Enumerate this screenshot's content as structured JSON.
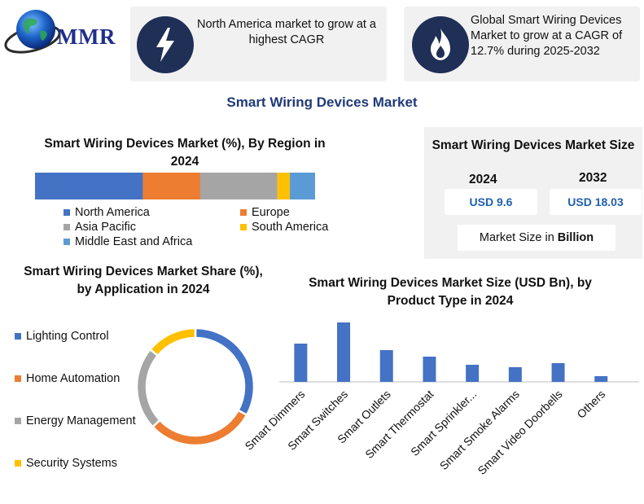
{
  "header": {
    "logo_text": "MMR",
    "card1_text": "North America market to grow at a highest CAGR",
    "card1_icon": "lightning-bolt-icon",
    "card2_text": "Global Smart Wiring Devices Market to grow at a CAGR of 12.7% during 2025-2032",
    "card2_icon": "flame-icon"
  },
  "main_title": "Smart Wiring Devices Market",
  "market_size": {
    "title": "Smart Wiring Devices Market Size",
    "year1": "2024",
    "value1": "USD 9.6",
    "year2": "2032",
    "value2": "USD 18.03",
    "unit_prefix": "Market Size in",
    "unit_bold": "Billion"
  },
  "colors": {
    "north_america": "#4472c4",
    "europe": "#ed7d31",
    "asia_pacific": "#a5a5a5",
    "south_america": "#ffc000",
    "mea": "#5b9bd5",
    "bar": "#4472c4",
    "title_blue": "#1f3a7a"
  },
  "chart_data": [
    {
      "type": "bar",
      "orientation": "horizontal-stacked",
      "title": "Smart Wiring Devices Market (%), By Region in 2024",
      "series": [
        {
          "name": "North America",
          "value": 38.5
        },
        {
          "name": "Europe",
          "value": 20.5
        },
        {
          "name": "Asia Pacific",
          "value": 27.5
        },
        {
          "name": "South America",
          "value": 4.5
        },
        {
          "name": "Middle East and Africa",
          "value": 9.0
        }
      ]
    },
    {
      "type": "pie",
      "variant": "donut",
      "title": "Smart Wiring Devices Market Share (%), by Application in 2024",
      "series": [
        {
          "name": "Lighting Control",
          "value": 33
        },
        {
          "name": "Home Automation",
          "value": 30
        },
        {
          "name": "Energy Management",
          "value": 23
        },
        {
          "name": "Security Systems",
          "value": 14
        }
      ]
    },
    {
      "type": "bar",
      "title": "Smart Wiring Devices Market Size (USD Bn), by Product Type in 2024",
      "categories": [
        "Smart Dimmers",
        "Smart Switches",
        "Smart Outlets",
        "Smart Thermostat",
        "Smart Sprinkler...",
        "Smart Smoke Alarms",
        "Smart Video Doorbells",
        "Others"
      ],
      "values": [
        47,
        73,
        39,
        31,
        21,
        18,
        23,
        7
      ],
      "xlabel": "",
      "ylabel": "",
      "ylim": [
        0,
        80
      ],
      "grid": false
    }
  ]
}
